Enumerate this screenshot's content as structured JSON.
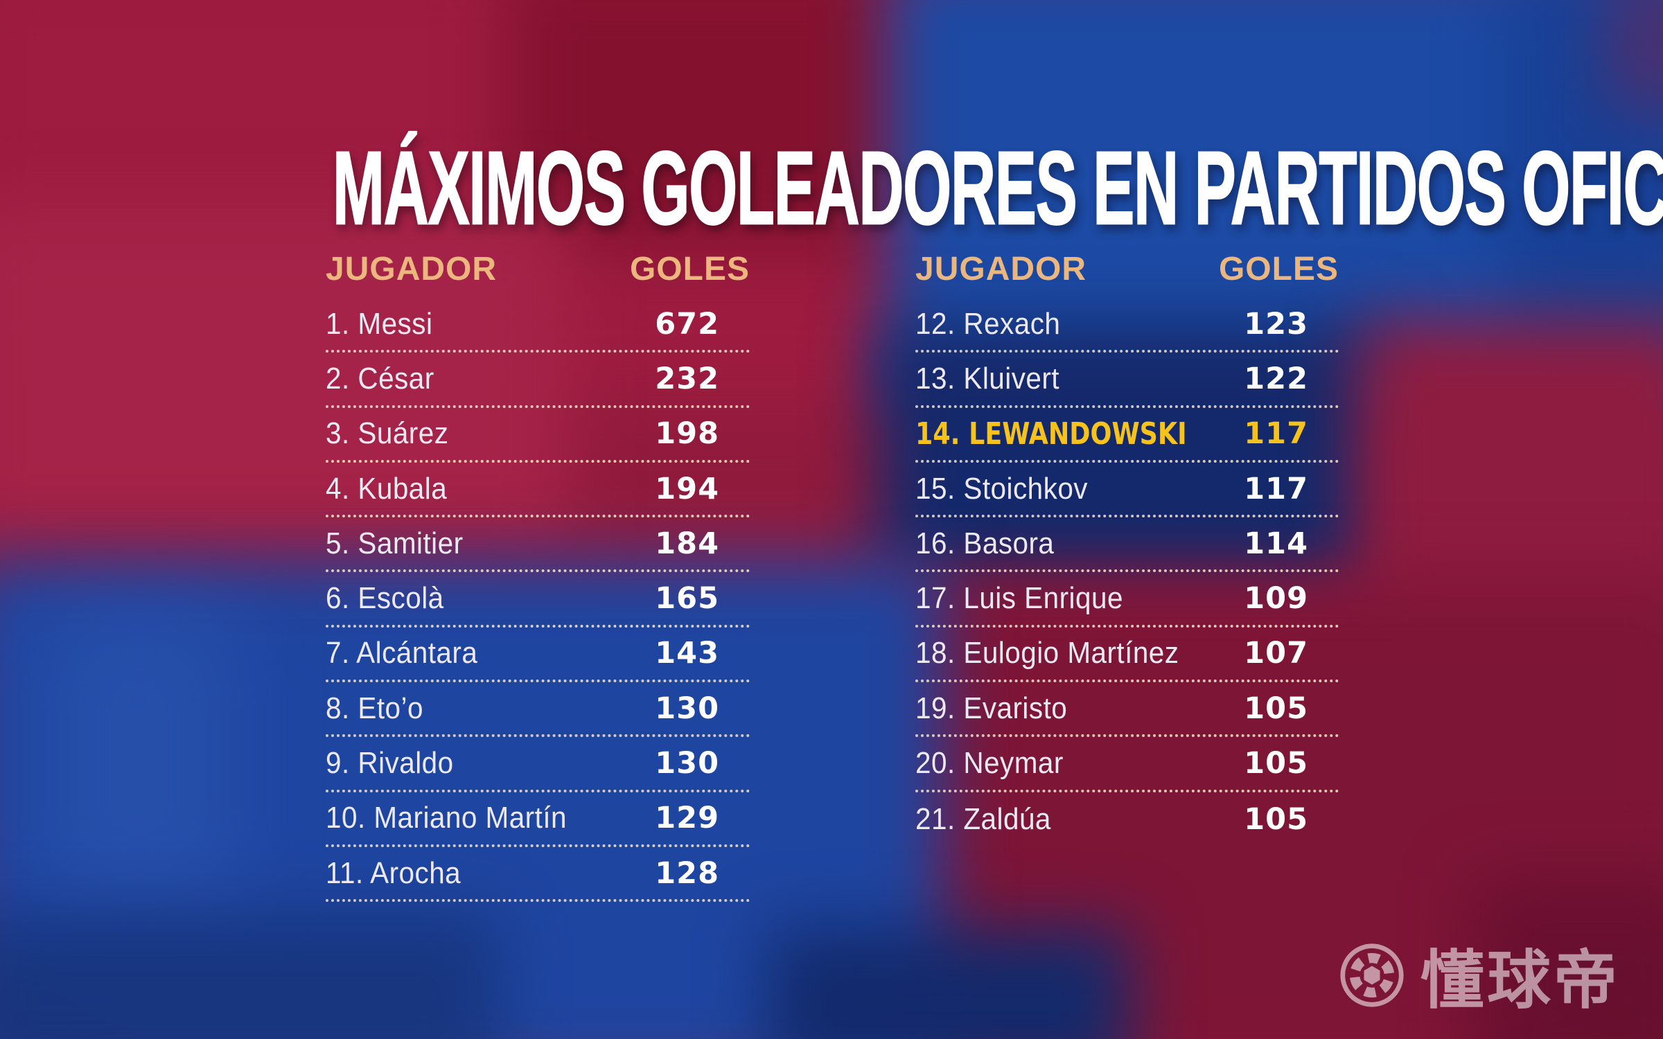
{
  "chart_data": {
    "type": "table",
    "title": "MÁXIMOS GOLEADORES EN PARTIDOS OFICIALES",
    "column_headers": {
      "player": "JUGADOR",
      "goals": "GOLES"
    },
    "groups": [
      {
        "rows": [
          {
            "rank": 1,
            "name": "Messi",
            "goals": 672
          },
          {
            "rank": 2,
            "name": "César",
            "goals": 232
          },
          {
            "rank": 3,
            "name": "Suárez",
            "goals": 198
          },
          {
            "rank": 4,
            "name": "Kubala",
            "goals": 194
          },
          {
            "rank": 5,
            "name": "Samitier",
            "goals": 184
          },
          {
            "rank": 6,
            "name": "Escolà",
            "goals": 165
          },
          {
            "rank": 7,
            "name": "Alcántara",
            "goals": 143
          },
          {
            "rank": 8,
            "name": "Eto’o",
            "goals": 130
          },
          {
            "rank": 9,
            "name": "Rivaldo",
            "goals": 130
          },
          {
            "rank": 10,
            "name": "Mariano Martín",
            "goals": 129
          },
          {
            "rank": 11,
            "name": "Arocha",
            "goals": 128
          }
        ]
      },
      {
        "rows": [
          {
            "rank": 12,
            "name": "Rexach",
            "goals": 123
          },
          {
            "rank": 13,
            "name": "Kluivert",
            "goals": 122
          },
          {
            "rank": 14,
            "name": "LEWANDOWSKI",
            "goals": 117,
            "highlight": true
          },
          {
            "rank": 15,
            "name": "Stoichkov",
            "goals": 117
          },
          {
            "rank": 16,
            "name": "Basora",
            "goals": 114
          },
          {
            "rank": 17,
            "name": "Luis Enrique",
            "goals": 109
          },
          {
            "rank": 18,
            "name": "Eulogio Martínez",
            "goals": 107
          },
          {
            "rank": 19,
            "name": "Evaristo",
            "goals": 105
          },
          {
            "rank": 20,
            "name": "Neymar",
            "goals": 105
          },
          {
            "rank": 21,
            "name": "Zaldúa",
            "goals": 105
          }
        ]
      }
    ],
    "legend_position": "none",
    "grid": "dotted row separators"
  },
  "watermark": {
    "text": "懂球帝",
    "icon": "football-icon"
  },
  "colors": {
    "title": "#FFFFFF",
    "header_gold": "#EBB77E",
    "row_text": "#EDE9F3",
    "goals_text": "#FFFFFF",
    "highlight": "#F7C31B",
    "divider": "#F2E5CD",
    "barca_red": "#9A1B3E",
    "barca_blue": "#1C4AA4"
  }
}
